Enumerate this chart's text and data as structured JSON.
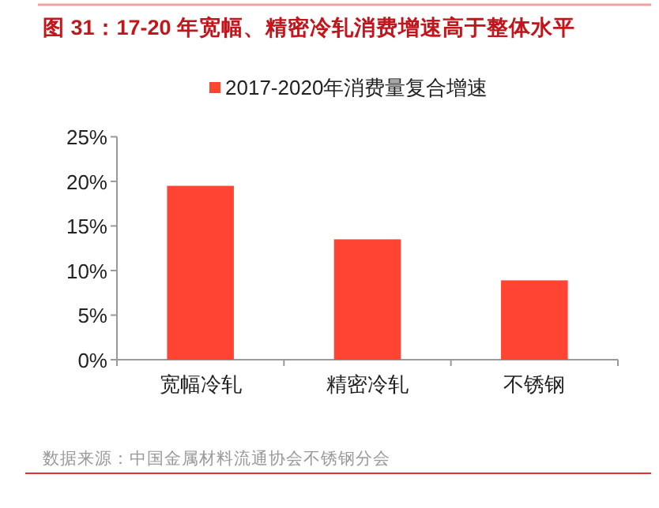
{
  "chart_data": {
    "type": "bar",
    "title": "图 31：17-20 年宽幅、精密冷轧消费增速高于整体水平",
    "categories": [
      "宽幅冷轧",
      "精密冷轧",
      "不锈钢"
    ],
    "series": [
      {
        "name": "2017-2020年消费量复合增速",
        "color": "#ff4433",
        "values": [
          19.5,
          13.5,
          8.9
        ]
      }
    ],
    "ylim": [
      0,
      25
    ],
    "yticks": [
      {
        "value": 0,
        "label": "0%"
      },
      {
        "value": 5,
        "label": "5%"
      },
      {
        "value": 10,
        "label": "10%"
      },
      {
        "value": 15,
        "label": "15%"
      },
      {
        "value": 20,
        "label": "20%"
      },
      {
        "value": 25,
        "label": "25%"
      }
    ],
    "legend": "top",
    "annotations": [
      "数据来源：中国金属材料流通协会不锈钢分会"
    ]
  }
}
